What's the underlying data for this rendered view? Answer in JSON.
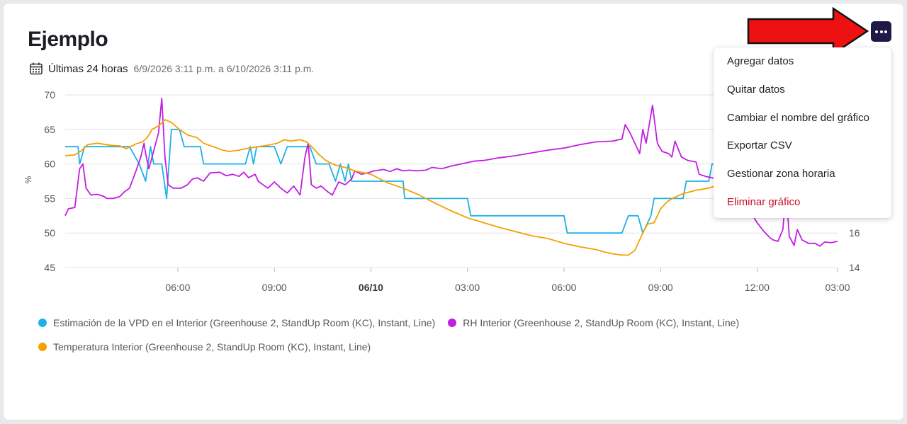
{
  "card": {
    "title": "Ejemplo",
    "range_label": "Últimas 24 horas",
    "range_dates": "6/9/2026 3:11 p.m. a 6/10/2026 3:11 p.m."
  },
  "icons": {
    "calendar": "calendar-icon",
    "menu": "more-horizontal-icon",
    "arrow": "red-arrow-annotation"
  },
  "menu": {
    "items": [
      {
        "label": "Agregar datos",
        "danger": false
      },
      {
        "label": "Quitar datos",
        "danger": false
      },
      {
        "label": "Cambiar el nombre del gráfico",
        "danger": false
      },
      {
        "label": "Exportar CSV",
        "danger": false
      },
      {
        "label": "Gestionar zona horaria",
        "danger": false
      },
      {
        "label": "Eliminar gráfico",
        "danger": true
      }
    ]
  },
  "colors": {
    "vpd": "#1fb0e6",
    "rh": "#c21ee0",
    "temp": "#f5a000",
    "menu_button": "#1f1a45",
    "danger": "#c8102e",
    "arrow": "#ee1111"
  },
  "chart_data": {
    "type": "line",
    "ylabel": "%",
    "ylim": [
      45,
      70
    ],
    "y2lim": [
      14,
      24
    ],
    "y_ticks": [
      "70",
      "65",
      "60",
      "55",
      "50",
      "45"
    ],
    "y2_ticks": [
      "16",
      "14"
    ],
    "x_range": [
      0,
      24
    ],
    "x_ticks": [
      {
        "x": 3.5,
        "label": "06:00",
        "bold": false
      },
      {
        "x": 6.5,
        "label": "09:00",
        "bold": false
      },
      {
        "x": 9.5,
        "label": "06/10",
        "bold": true
      },
      {
        "x": 12.5,
        "label": "03:00",
        "bold": false
      },
      {
        "x": 15.5,
        "label": "06:00",
        "bold": false
      },
      {
        "x": 18.5,
        "label": "09:00",
        "bold": false
      },
      {
        "x": 21.5,
        "label": "12:00",
        "bold": false
      },
      {
        "x": 24.0,
        "label": "03:00",
        "bold": false
      }
    ],
    "grid": true,
    "legend_position": "bottom",
    "series": [
      {
        "name": "Estimación de la VPD en el Interior (Greenhouse 2, StandUp Room (KC), Instant, Line)",
        "color": "#1fb0e6",
        "points": [
          [
            0,
            62.5
          ],
          [
            0.4,
            62.5
          ],
          [
            0.45,
            60
          ],
          [
            0.6,
            62.5
          ],
          [
            1.6,
            62.5
          ],
          [
            2,
            62.5
          ],
          [
            2.3,
            60
          ],
          [
            2.5,
            57.5
          ],
          [
            2.65,
            62.5
          ],
          [
            2.75,
            60
          ],
          [
            3.0,
            60
          ],
          [
            3.15,
            55
          ],
          [
            3.3,
            65
          ],
          [
            3.55,
            65
          ],
          [
            3.7,
            62.5
          ],
          [
            4.2,
            62.5
          ],
          [
            4.3,
            60
          ],
          [
            5.6,
            60
          ],
          [
            5.75,
            62.5
          ],
          [
            5.85,
            60
          ],
          [
            5.95,
            62.5
          ],
          [
            6.5,
            62.5
          ],
          [
            6.7,
            60
          ],
          [
            6.9,
            62.5
          ],
          [
            7.4,
            62.5
          ],
          [
            7.6,
            62.5
          ],
          [
            7.8,
            60
          ],
          [
            8.2,
            60
          ],
          [
            8.4,
            57.5
          ],
          [
            8.55,
            60
          ],
          [
            8.7,
            57.5
          ],
          [
            8.8,
            60
          ],
          [
            8.9,
            57.5
          ],
          [
            10.5,
            57.5
          ],
          [
            10.55,
            55
          ],
          [
            12.5,
            55
          ],
          [
            12.6,
            52.5
          ],
          [
            15.5,
            52.5
          ],
          [
            15.6,
            50
          ],
          [
            17.3,
            50
          ],
          [
            17.5,
            52.5
          ],
          [
            17.8,
            52.5
          ],
          [
            17.95,
            50
          ],
          [
            18.2,
            52.5
          ],
          [
            18.3,
            55
          ],
          [
            19.2,
            55
          ],
          [
            19.3,
            57.5
          ],
          [
            20.0,
            57.5
          ],
          [
            20.1,
            60
          ],
          [
            21.5,
            60
          ],
          [
            21.6,
            57.5
          ],
          [
            24,
            57.5
          ]
        ]
      },
      {
        "name": "RH Interior (Greenhouse 2, StandUp Room (KC), Instant, Line)",
        "color": "#c21ee0",
        "points": [
          [
            0,
            52.5
          ],
          [
            0.1,
            53.5
          ],
          [
            0.3,
            53.7
          ],
          [
            0.45,
            59.3
          ],
          [
            0.55,
            60
          ],
          [
            0.65,
            56.5
          ],
          [
            0.8,
            55.5
          ],
          [
            1.0,
            55.6
          ],
          [
            1.2,
            55.3
          ],
          [
            1.3,
            55
          ],
          [
            1.5,
            55
          ],
          [
            1.7,
            55.3
          ],
          [
            1.85,
            56
          ],
          [
            2.0,
            56.5
          ],
          [
            2.2,
            59
          ],
          [
            2.35,
            61
          ],
          [
            2.45,
            63
          ],
          [
            2.5,
            61.5
          ],
          [
            2.6,
            59.3
          ],
          [
            2.7,
            61
          ],
          [
            2.9,
            64.5
          ],
          [
            3.0,
            69.5
          ],
          [
            3.1,
            61
          ],
          [
            3.2,
            57
          ],
          [
            3.35,
            56.5
          ],
          [
            3.6,
            56.5
          ],
          [
            3.8,
            57
          ],
          [
            3.95,
            57.8
          ],
          [
            4.1,
            58
          ],
          [
            4.3,
            57.5
          ],
          [
            4.5,
            58.7
          ],
          [
            4.8,
            58.8
          ],
          [
            5.0,
            58.3
          ],
          [
            5.2,
            58.5
          ],
          [
            5.4,
            58.2
          ],
          [
            5.55,
            58.8
          ],
          [
            5.7,
            58
          ],
          [
            5.9,
            58.5
          ],
          [
            6.0,
            57.5
          ],
          [
            6.2,
            56.8
          ],
          [
            6.3,
            56.5
          ],
          [
            6.5,
            57.4
          ],
          [
            6.7,
            56.5
          ],
          [
            6.9,
            55.8
          ],
          [
            7.1,
            56.8
          ],
          [
            7.3,
            55.5
          ],
          [
            7.45,
            61
          ],
          [
            7.55,
            63
          ],
          [
            7.65,
            57
          ],
          [
            7.8,
            56.5
          ],
          [
            7.95,
            56.8
          ],
          [
            8.15,
            56
          ],
          [
            8.3,
            55.5
          ],
          [
            8.5,
            57.4
          ],
          [
            8.7,
            57
          ],
          [
            8.9,
            57.8
          ],
          [
            9.0,
            59
          ],
          [
            9.2,
            58.5
          ],
          [
            9.4,
            58.7
          ],
          [
            9.6,
            59
          ],
          [
            9.9,
            59.2
          ],
          [
            10.1,
            58.9
          ],
          [
            10.3,
            59.3
          ],
          [
            10.5,
            59
          ],
          [
            10.7,
            59.1
          ],
          [
            10.9,
            59
          ],
          [
            11.2,
            59.1
          ],
          [
            11.4,
            59.5
          ],
          [
            11.7,
            59.3
          ],
          [
            12.0,
            59.7
          ],
          [
            12.3,
            60
          ],
          [
            12.7,
            60.4
          ],
          [
            13.0,
            60.5
          ],
          [
            13.5,
            60.9
          ],
          [
            14.0,
            61.2
          ],
          [
            14.5,
            61.6
          ],
          [
            15.0,
            62
          ],
          [
            15.5,
            62.3
          ],
          [
            16.0,
            62.8
          ],
          [
            16.5,
            63.2
          ],
          [
            17.0,
            63.3
          ],
          [
            17.3,
            63.6
          ],
          [
            17.4,
            65.7
          ],
          [
            17.55,
            64.5
          ],
          [
            17.7,
            63
          ],
          [
            17.85,
            61.5
          ],
          [
            17.95,
            65
          ],
          [
            18.05,
            63
          ],
          [
            18.25,
            68.5
          ],
          [
            18.4,
            63
          ],
          [
            18.55,
            61.8
          ],
          [
            18.75,
            61.5
          ],
          [
            18.85,
            61
          ],
          [
            18.95,
            63.3
          ],
          [
            19.15,
            61
          ],
          [
            19.35,
            60.5
          ],
          [
            19.6,
            60.3
          ],
          [
            19.7,
            58.5
          ],
          [
            19.9,
            58.2
          ],
          [
            20.2,
            57.9
          ],
          [
            20.5,
            57.6
          ],
          [
            20.7,
            57.5
          ],
          [
            20.9,
            57
          ],
          [
            21.1,
            56
          ],
          [
            21.3,
            53
          ],
          [
            21.5,
            51.5
          ],
          [
            21.7,
            50.3
          ],
          [
            21.9,
            49.3
          ],
          [
            22.0,
            49
          ],
          [
            22.15,
            48.8
          ],
          [
            22.3,
            50.5
          ],
          [
            22.4,
            56
          ],
          [
            22.5,
            49.5
          ],
          [
            22.65,
            48.2
          ],
          [
            22.75,
            50.5
          ],
          [
            22.9,
            49
          ],
          [
            23.1,
            48.5
          ],
          [
            23.3,
            48.5
          ],
          [
            23.45,
            48.1
          ],
          [
            23.6,
            48.7
          ],
          [
            23.8,
            48.6
          ],
          [
            24,
            48.8
          ]
        ]
      },
      {
        "name": "Temperatura Interior (Greenhouse 2, StandUp Room (KC), Instant, Line)",
        "color": "#f5a000",
        "points": [
          [
            0,
            61.2
          ],
          [
            0.3,
            61.3
          ],
          [
            0.5,
            61.9
          ],
          [
            0.7,
            62.8
          ],
          [
            1.0,
            63
          ],
          [
            1.4,
            62.7
          ],
          [
            1.7,
            62.6
          ],
          [
            1.9,
            62.2
          ],
          [
            2.2,
            62.9
          ],
          [
            2.4,
            63.2
          ],
          [
            2.55,
            63.8
          ],
          [
            2.7,
            65
          ],
          [
            2.9,
            65.5
          ],
          [
            3.1,
            66.4
          ],
          [
            3.3,
            66
          ],
          [
            3.55,
            65
          ],
          [
            3.8,
            64.2
          ],
          [
            4.1,
            63.8
          ],
          [
            4.3,
            63
          ],
          [
            4.6,
            62.5
          ],
          [
            4.9,
            62
          ],
          [
            5.1,
            61.8
          ],
          [
            5.4,
            62
          ],
          [
            5.7,
            62.3
          ],
          [
            6.0,
            62.5
          ],
          [
            6.3,
            62.7
          ],
          [
            6.6,
            63
          ],
          [
            6.8,
            63.5
          ],
          [
            7.0,
            63.3
          ],
          [
            7.3,
            63.5
          ],
          [
            7.5,
            63.2
          ],
          [
            7.7,
            62.3
          ],
          [
            7.9,
            61.3
          ],
          [
            8.1,
            60.5
          ],
          [
            8.3,
            60
          ],
          [
            8.5,
            59.7
          ],
          [
            8.7,
            59.5
          ],
          [
            9.0,
            59
          ],
          [
            9.5,
            58.5
          ],
          [
            10.0,
            57.3
          ],
          [
            10.5,
            56.5
          ],
          [
            11.0,
            55.5
          ],
          [
            11.5,
            54.3
          ],
          [
            12.0,
            53.2
          ],
          [
            12.5,
            52.2
          ],
          [
            13.0,
            51.5
          ],
          [
            13.5,
            50.8
          ],
          [
            14.0,
            50.2
          ],
          [
            14.5,
            49.6
          ],
          [
            15.0,
            49.2
          ],
          [
            15.5,
            48.5
          ],
          [
            16.0,
            48
          ],
          [
            16.5,
            47.6
          ],
          [
            16.8,
            47.2
          ],
          [
            17.0,
            47
          ],
          [
            17.3,
            46.8
          ],
          [
            17.5,
            46.8
          ],
          [
            17.7,
            47.5
          ],
          [
            17.85,
            49
          ],
          [
            18.0,
            50.5
          ],
          [
            18.1,
            51.3
          ],
          [
            18.3,
            51.5
          ],
          [
            18.5,
            53.5
          ],
          [
            18.7,
            54.5
          ],
          [
            18.9,
            55.1
          ],
          [
            19.2,
            55.7
          ],
          [
            19.6,
            56.2
          ],
          [
            20.0,
            56.5
          ],
          [
            20.3,
            57
          ],
          [
            20.6,
            58
          ],
          [
            21.0,
            59.2
          ],
          [
            21.3,
            59.5
          ]
        ]
      }
    ]
  }
}
